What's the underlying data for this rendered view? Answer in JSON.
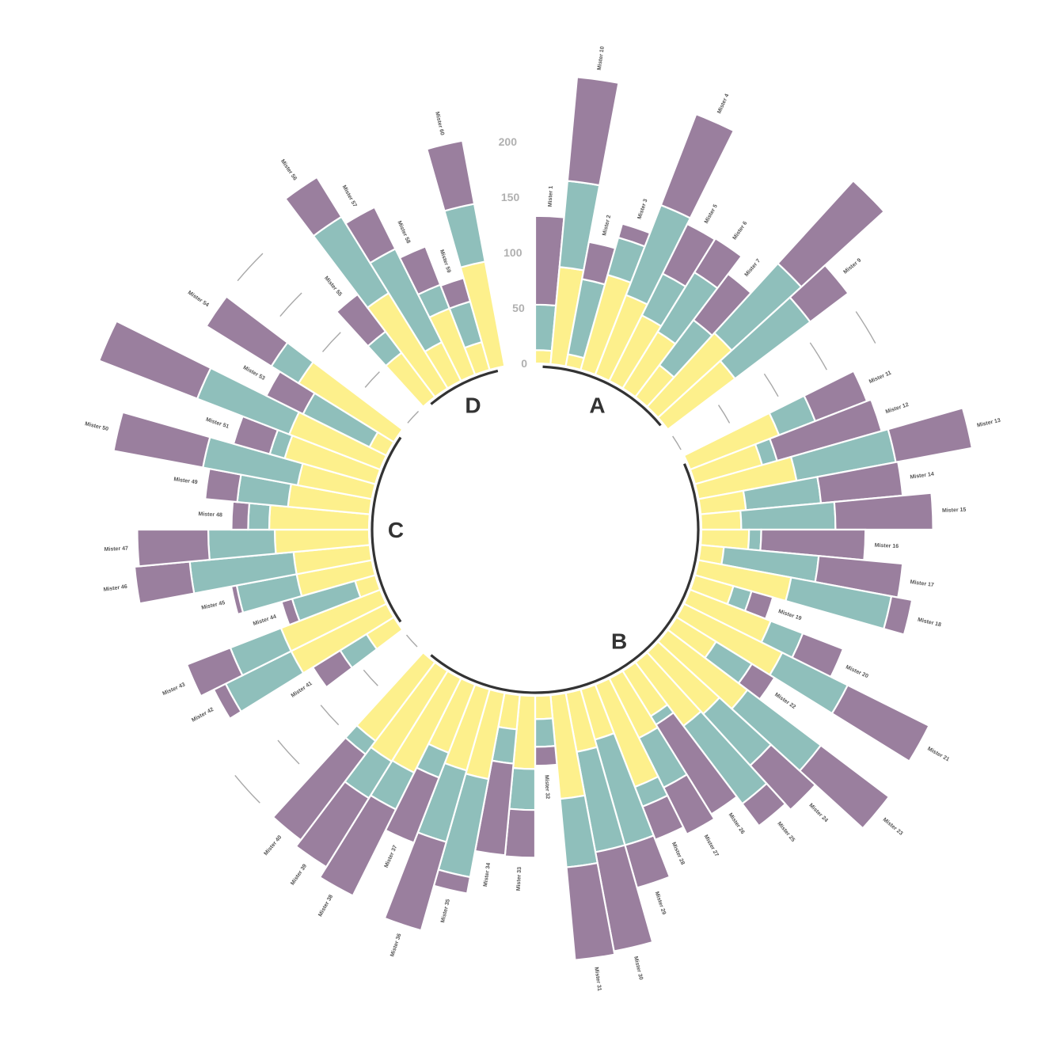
{
  "chart_data": {
    "type": "bar",
    "variant": "circular stacked bar",
    "title": "",
    "legend": "none",
    "grid": "segments in group gaps",
    "scale_ticks": [
      "0",
      "50",
      "100",
      "150",
      "200"
    ],
    "ylim": [
      0,
      280
    ],
    "series_colors": [
      "#fdf08c",
      "#8fbfbb",
      "#9a7f9e"
    ],
    "group_arc_color": "#333333",
    "groups": [
      {
        "label": "A",
        "bars": [
          {
            "label": "Mister 1",
            "values": [
              12,
              41,
              80
            ]
          },
          {
            "label": "Mister 10",
            "values": [
              88,
              78,
              94
            ]
          },
          {
            "label": "Mister 2",
            "values": [
              11,
              69,
              34
            ]
          },
          {
            "label": "Mister 3",
            "values": [
              89,
              35,
              13
            ]
          },
          {
            "label": "Mister 4",
            "values": [
              77,
              87,
              88
            ]
          },
          {
            "label": "Mister 5",
            "values": [
              66,
              42,
              50
            ]
          },
          {
            "label": "Mister 6",
            "values": [
              60,
              63,
              36
            ]
          },
          {
            "label": "Mister 7",
            "values": [
              36,
              51,
              52
            ]
          },
          {
            "label": "",
            "values": [
              90,
              85,
              101
            ]
          },
          {
            "label": "Mister 9",
            "values": [
              76,
              85,
              43
            ]
          }
        ]
      },
      {
        "label": "B",
        "bars": [
          {
            "label": "Mister 11",
            "values": [
              86,
              35,
              50
            ]
          },
          {
            "label": "Mister 12",
            "values": [
              63,
              14,
              98
            ]
          },
          {
            "label": "Mister 13",
            "values": [
              90,
              91,
              70
            ]
          },
          {
            "label": "Mister 14",
            "values": [
              41,
              68,
              74
            ]
          },
          {
            "label": "Mister 15",
            "values": [
              36,
              85,
              88
            ]
          },
          {
            "label": "Mister 16",
            "values": [
              43,
              11,
              94
            ]
          },
          {
            "label": "Mister 17",
            "values": [
              21,
              86,
              76
            ]
          },
          {
            "label": "Mister 18",
            "values": [
              85,
              92,
              19
            ]
          },
          {
            "label": "Mister 19",
            "values": [
              36,
              17,
              20
            ]
          },
          {
            "label": "Mister 20",
            "values": [
              78,
              31,
              39
            ]
          },
          {
            "label": "Mister 21",
            "values": [
              99,
              66,
              82
            ]
          },
          {
            "label": "Mister 22",
            "values": [
              42,
              38,
              24
            ]
          },
          {
            "label": "Mister 23",
            "values": [
              90,
              83,
              77
            ]
          },
          {
            "label": "Mister 24",
            "values": [
              75,
              63,
              54
            ]
          },
          {
            "label": "Mister 25",
            "values": [
              72,
              88,
              25
            ]
          },
          {
            "label": "Mister 26",
            "values": [
              48,
              9,
              95
            ]
          },
          {
            "label": "Mister 27",
            "values": [
              60,
              50,
              47
            ]
          },
          {
            "label": "Mister 28",
            "values": [
              99,
              19,
              32
            ]
          },
          {
            "label": "Mister 29",
            "values": [
              47,
              99,
              40
            ]
          },
          {
            "label": "Mister 30",
            "values": [
              54,
              92,
              91
            ]
          },
          {
            "label": "Mister 31",
            "values": [
              94,
              62,
              84
            ]
          },
          {
            "label": "Mister 32",
            "values": [
              21,
              25,
              17
            ]
          },
          {
            "label": "Mister 33",
            "values": [
              66,
              37,
              43
            ]
          },
          {
            "label": "Mister 34",
            "values": [
              31,
              31,
              83
            ]
          },
          {
            "label": "Mister 35",
            "values": [
              79,
              90,
              15
            ]
          },
          {
            "label": "Mister 36",
            "values": [
              76,
              67,
              83
            ]
          },
          {
            "label": "Mister 37",
            "values": [
              66,
              24,
              63
            ]
          },
          {
            "label": "Mister 38",
            "values": [
              95,
              37,
              87
            ]
          },
          {
            "label": "Mister 39",
            "values": [
              96,
              39,
              73
            ]
          },
          {
            "label": "Mister 40",
            "values": [
              89,
              15,
              97
            ]
          }
        ]
      },
      {
        "label": "C",
        "bars": [
          {
            "label": "Mister 41",
            "values": [
              29,
              28,
              29
            ]
          },
          {
            "label": "Mister 42",
            "values": [
              96,
              66,
              12
            ]
          },
          {
            "label": "Mister 43",
            "values": [
              96,
              49,
              42
            ]
          },
          {
            "label": "Mister 44",
            "values": [
              19,
              59,
              10
            ]
          },
          {
            "label": "Mister 45",
            "values": [
              69,
              55,
              5
            ]
          },
          {
            "label": "Mister 46",
            "values": [
              69,
              94,
              50
            ]
          },
          {
            "label": "Mister 47",
            "values": [
              85,
              60,
              64
            ]
          },
          {
            "label": "Mister 48",
            "values": [
              90,
              19,
              15
            ]
          },
          {
            "label": "Mister 49",
            "values": [
              74,
              46,
              29
            ]
          },
          {
            "label": "Mister 50",
            "values": [
              68,
              87,
              82
            ]
          },
          {
            "label": "Mister 51",
            "values": [
              85,
              14,
              34
            ]
          },
          {
            "label": "",
            "values": [
              88,
              89,
              95
            ]
          },
          {
            "label": "Mister 53",
            "values": [
              17,
              67,
              37
            ]
          },
          {
            "label": "Mister 54",
            "values": [
              101,
              29,
              69
            ]
          }
        ]
      },
      {
        "label": "D",
        "bars": [
          {
            "label": "Mister 55",
            "values": [
              50,
              24,
              42
            ]
          },
          {
            "label": "Mister 56",
            "values": [
              101,
              81,
              42
            ]
          },
          {
            "label": "Mister 57",
            "values": [
              39,
              94,
              42
            ]
          },
          {
            "label": "Mister 58",
            "values": [
              64,
              23,
              37
            ]
          },
          {
            "label": "Mister 59",
            "values": [
              26,
              38,
              22
            ]
          },
          {
            "label": "Mister 60",
            "values": [
              96,
              53,
              58
            ]
          }
        ]
      }
    ]
  }
}
